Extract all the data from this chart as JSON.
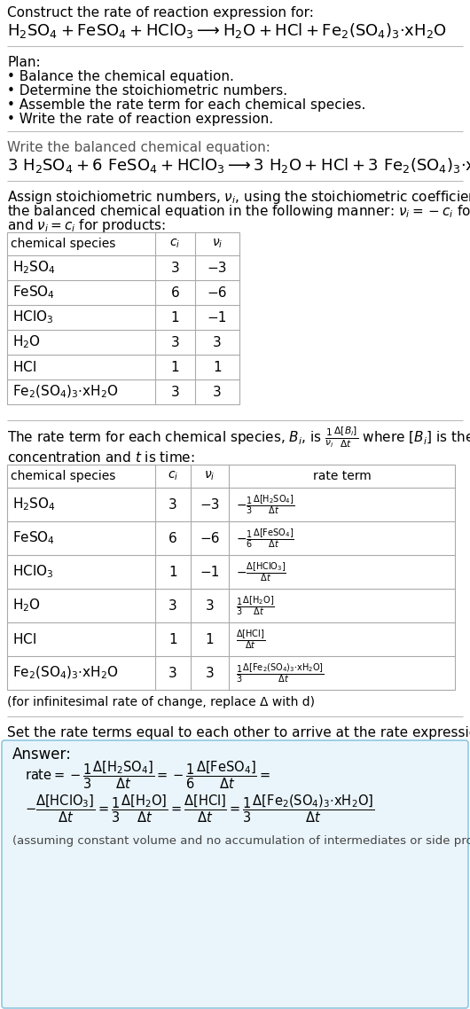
{
  "bg_color": "#ffffff",
  "title_line1": "Construct the rate of reaction expression for:",
  "plan_header": "Plan:",
  "plan_items": [
    "• Balance the chemical equation.",
    "• Determine the stoichiometric numbers.",
    "• Assemble the rate term for each chemical species.",
    "• Write the rate of reaction expression."
  ],
  "balanced_header": "Write the balanced chemical equation:",
  "table1_cols": [
    "chemical species",
    "c_i",
    "ν_i"
  ],
  "table1_rows": [
    [
      "H₂SO₄",
      "3",
      "−3"
    ],
    [
      "FeSO₄",
      "6",
      "−6"
    ],
    [
      "HClO₃",
      "1",
      "−1"
    ],
    [
      "H₂O",
      "3",
      "3"
    ],
    [
      "HCl",
      "1",
      "1"
    ],
    [
      "Fe₂(SO₄)₃·xH₂O",
      "3",
      "3"
    ]
  ],
  "table2_cols": [
    "chemical species",
    "c_i",
    "ν_i",
    "rate term"
  ],
  "table2_rows": [
    [
      "H₂SO₄",
      "3",
      "−3"
    ],
    [
      "FeSO₄",
      "6",
      "−6"
    ],
    [
      "HClO₃",
      "1",
      "−1"
    ],
    [
      "H₂O",
      "3",
      "3"
    ],
    [
      "HCl",
      "1",
      "1"
    ],
    [
      "Fe₂(SO₄)₃·xH₂O",
      "3",
      "3"
    ]
  ],
  "rate_terms_math": [
    "$-\\frac{1}{3}\\frac{\\Delta[\\mathrm{H_2SO_4}]}{\\Delta t}$",
    "$-\\frac{1}{6}\\frac{\\Delta[\\mathrm{FeSO_4}]}{\\Delta t}$",
    "$-\\frac{\\Delta[\\mathrm{HClO_3}]}{\\Delta t}$",
    "$\\frac{1}{3}\\frac{\\Delta[\\mathrm{H_2O}]}{\\Delta t}$",
    "$\\frac{\\Delta[\\mathrm{HCl}]}{\\Delta t}$",
    "$\\frac{1}{3}\\frac{\\Delta[\\mathrm{Fe_2(SO_4)_3{\\cdot}xH_2O}]}{\\Delta t}$"
  ],
  "infinitesimal_note": "(for infinitesimal rate of change, replace Δ with d)",
  "set_rate_header": "Set the rate terms equal to each other to arrive at the rate expression:",
  "answer_label": "Answer:",
  "answer_box_color": "#eaf5fb",
  "answer_box_border": "#90c8e0",
  "assuming_note": "(assuming constant volume and no accumulation of intermediates or side products)"
}
